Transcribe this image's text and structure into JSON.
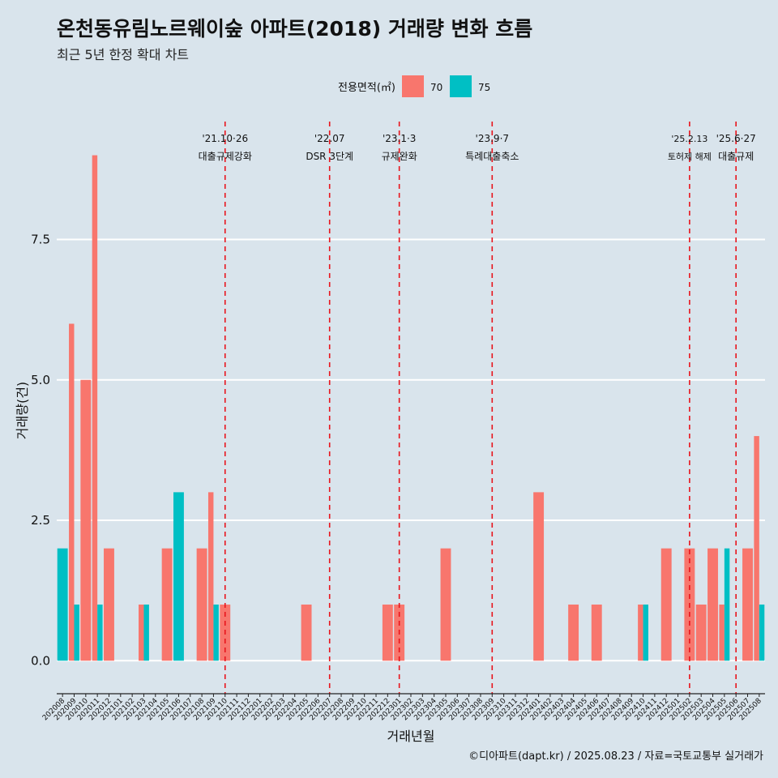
{
  "title": "온천동유림노르웨이숲 아파트(2018) 거래량 변화 흐름",
  "subtitle": "최근 5년 한정 확대 차트",
  "caption": "©디아파트(dapt.kr) / 2025.08.23 / 자료=국토교통부 실거래가",
  "colors": {
    "background": "#d9e4ec",
    "s70": "#f8766d",
    "s75": "#00bfc4",
    "vline": "#e8141c",
    "grid": "#ffffff"
  },
  "chart_data": {
    "type": "bar",
    "xlabel": "거래년월",
    "ylabel": "거래량(건)",
    "ylim": [
      -0.4,
      9.6
    ],
    "y_ticks": [
      0.0,
      2.5,
      5.0,
      7.5
    ],
    "y_tick_labels": [
      "0.0",
      "2.5",
      "5.0",
      "7.5"
    ],
    "grid": true,
    "legend": {
      "title": "전용면적(㎡)",
      "position": "top"
    },
    "categories": [
      "202008",
      "202009",
      "202010",
      "202011",
      "202012",
      "202101",
      "202102",
      "202103",
      "202104",
      "202105",
      "202106",
      "202107",
      "202108",
      "202109",
      "202110",
      "202111",
      "202112",
      "202201",
      "202202",
      "202203",
      "202204",
      "202205",
      "202206",
      "202207",
      "202208",
      "202209",
      "202210",
      "202211",
      "202212",
      "202301",
      "202302",
      "202303",
      "202304",
      "202305",
      "202306",
      "202307",
      "202308",
      "202309",
      "202310",
      "202311",
      "202312",
      "202401",
      "202402",
      "202403",
      "202404",
      "202405",
      "202406",
      "202407",
      "202408",
      "202409",
      "202410",
      "202411",
      "202412",
      "202501",
      "202502",
      "202503",
      "202504",
      "202505",
      "202506",
      "202507",
      "202508"
    ],
    "series": [
      {
        "name": "70",
        "values": [
          0,
          6,
          5,
          9,
          2,
          0,
          0,
          1,
          0,
          2,
          0,
          0,
          2,
          3,
          1,
          0,
          0,
          0,
          0,
          0,
          0,
          1,
          0,
          0,
          0,
          0,
          0,
          0,
          1,
          1,
          0,
          0,
          0,
          2,
          0,
          0,
          0,
          0,
          0,
          0,
          0,
          3,
          0,
          0,
          1,
          0,
          1,
          0,
          0,
          0,
          1,
          0,
          2,
          0,
          2,
          1,
          2,
          1,
          0,
          2,
          4
        ]
      },
      {
        "name": "75",
        "values": [
          2,
          1,
          0,
          1,
          0,
          0,
          0,
          1,
          0,
          0,
          3,
          0,
          0,
          1,
          0,
          0,
          0,
          0,
          0,
          0,
          0,
          0,
          0,
          0,
          0,
          0,
          0,
          0,
          0,
          0,
          0,
          0,
          0,
          0,
          0,
          0,
          0,
          0,
          0,
          0,
          0,
          0,
          0,
          0,
          0,
          0,
          0,
          0,
          0,
          0,
          1,
          0,
          0,
          0,
          0,
          0,
          0,
          2,
          0,
          0,
          1
        ]
      }
    ],
    "annotations": [
      {
        "category": "202110",
        "date": "'21.10·26",
        "label": "대출규제강화"
      },
      {
        "category": "202207",
        "date": "'22.07",
        "label": "DSR 3단계"
      },
      {
        "category": "202301",
        "date": "'23.1·3",
        "label": "규제완화"
      },
      {
        "category": "202309",
        "date": "'23.9·7",
        "label": "특례대출축소"
      },
      {
        "category": "202502",
        "date": "'25.2.13",
        "label": "토허제 해제"
      },
      {
        "category": "202506",
        "date": "'25.6·27",
        "label": "대출규제"
      }
    ]
  }
}
